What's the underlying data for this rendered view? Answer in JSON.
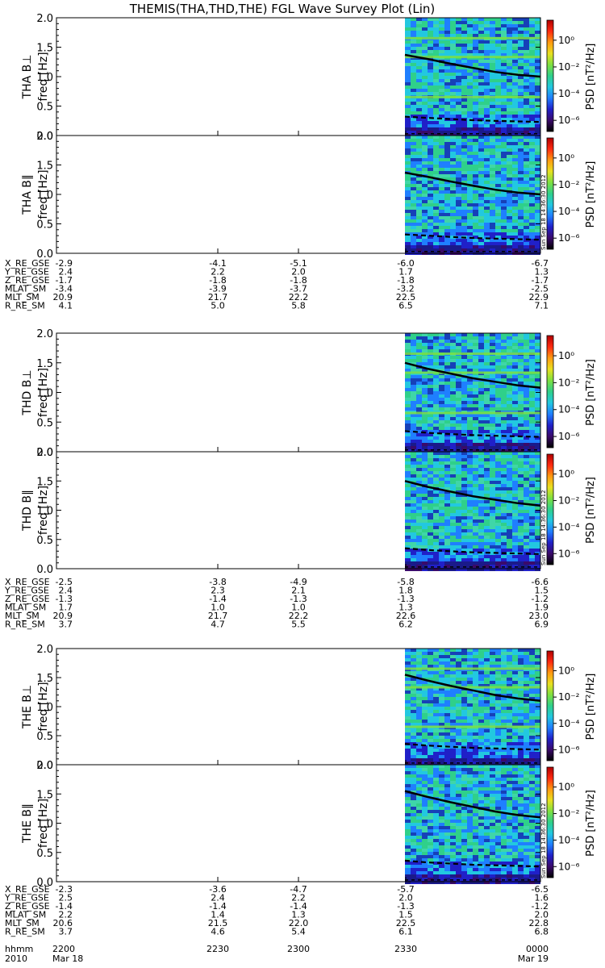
{
  "title": "THEMIS(THA,THD,THE) FGL Wave Survey Plot (Lin)",
  "timestamp": "Sun Sep 18 14:36:30 2012",
  "colorbar": {
    "label": "PSD [nT²/Hz]",
    "tick_labels": [
      "10⁰",
      "10⁻²",
      "10⁻⁴",
      "10⁻⁶"
    ],
    "colors": [
      "#000000",
      "#3a0a6a",
      "#2020c8",
      "#1f7fff",
      "#22c8e0",
      "#2fd08a",
      "#7ee040",
      "#e8e020",
      "#ff9a10",
      "#ff2a10",
      "#b00000"
    ]
  },
  "chart_data": [
    {
      "type": "heatmap",
      "probe": "THA",
      "component": "⊥",
      "ylabel": "THA B⊥",
      "yunit": "freq [Hz]",
      "ylim": [
        0,
        2
      ],
      "y_ticks": [
        "0.0",
        "0.5",
        "1.0",
        "1.5",
        "2.0"
      ],
      "solid_line": [
        1.37,
        1.3,
        1.22,
        1.15,
        1.08,
        1.03,
        1.0
      ],
      "dashed_line": [
        0.32,
        0.3,
        0.28,
        0.26,
        0.25,
        0.24,
        0.23
      ]
    },
    {
      "type": "heatmap",
      "probe": "THA",
      "component": "∥",
      "ylabel": "THA B∥",
      "yunit": "freq [Hz]",
      "ylim": [
        0,
        2
      ],
      "y_ticks": [
        "0.0",
        "0.5",
        "1.0",
        "1.5",
        "2.0"
      ],
      "solid_line": [
        1.37,
        1.3,
        1.22,
        1.15,
        1.08,
        1.03,
        1.0
      ],
      "dashed_line": [
        0.32,
        0.3,
        0.28,
        0.26,
        0.25,
        0.24,
        0.23
      ]
    },
    {
      "type": "heatmap",
      "probe": "THD",
      "component": "⊥",
      "ylabel": "THD B⊥",
      "yunit": "freq [Hz]",
      "ylim": [
        0,
        2
      ],
      "y_ticks": [
        "0.0",
        "0.5",
        "1.0",
        "1.5",
        "2.0"
      ],
      "solid_line": [
        1.5,
        1.4,
        1.32,
        1.24,
        1.18,
        1.12,
        1.08
      ],
      "dashed_line": [
        0.35,
        0.32,
        0.3,
        0.28,
        0.27,
        0.26,
        0.25
      ]
    },
    {
      "type": "heatmap",
      "probe": "THD",
      "component": "∥",
      "ylabel": "THD B∥",
      "yunit": "freq [Hz]",
      "ylim": [
        0,
        2
      ],
      "y_ticks": [
        "0.0",
        "0.5",
        "1.0",
        "1.5",
        "2.0"
      ],
      "solid_line": [
        1.5,
        1.4,
        1.32,
        1.24,
        1.18,
        1.12,
        1.08
      ],
      "dashed_line": [
        0.35,
        0.32,
        0.3,
        0.28,
        0.27,
        0.26,
        0.25
      ]
    },
    {
      "type": "heatmap",
      "probe": "THE",
      "component": "⊥",
      "ylabel": "THE B⊥",
      "yunit": "freq [Hz]",
      "ylim": [
        0,
        2
      ],
      "y_ticks": [
        "0.0",
        "0.5",
        "1.0",
        "1.5",
        "2.0"
      ],
      "solid_line": [
        1.55,
        1.45,
        1.36,
        1.28,
        1.2,
        1.14,
        1.1
      ],
      "dashed_line": [
        0.36,
        0.33,
        0.31,
        0.29,
        0.28,
        0.27,
        0.26
      ]
    },
    {
      "type": "heatmap",
      "probe": "THE",
      "component": "∥",
      "ylabel": "THE B∥",
      "yunit": "freq [Hz]",
      "ylim": [
        0,
        2
      ],
      "y_ticks": [
        "0.0",
        "0.5",
        "1.0",
        "1.5",
        "2.0"
      ],
      "solid_line": [
        1.55,
        1.45,
        1.36,
        1.28,
        1.2,
        1.14,
        1.1
      ],
      "dashed_line": [
        0.36,
        0.33,
        0.31,
        0.29,
        0.28,
        0.27,
        0.26
      ]
    }
  ],
  "ephemeris": [
    {
      "rows": [
        {
          "label": "X_RE_GSE",
          "values": [
            "-2.9",
            "-4.1",
            "-5.1",
            "-6.0",
            "-6.7"
          ]
        },
        {
          "label": "Y_RE_GSE",
          "values": [
            "2.4",
            "2.2",
            "2.0",
            "1.7",
            "1.3"
          ]
        },
        {
          "label": "Z_RE_GSE",
          "values": [
            "-1.7",
            "-1.8",
            "-1.8",
            "-1.8",
            "-1.7"
          ]
        },
        {
          "label": "MLAT_SM",
          "values": [
            "-3.4",
            "-3.9",
            "-3.7",
            "-3.2",
            "-2.5"
          ]
        },
        {
          "label": "MLT_SM",
          "values": [
            "20.9",
            "21.7",
            "22.2",
            "22.5",
            "22.9"
          ]
        },
        {
          "label": "R_RE_SM",
          "values": [
            "4.1",
            "5.0",
            "5.8",
            "6.5",
            "7.1"
          ]
        }
      ]
    },
    {
      "rows": [
        {
          "label": "X_RE_GSE",
          "values": [
            "-2.5",
            "-3.8",
            "-4.9",
            "-5.8",
            "-6.6"
          ]
        },
        {
          "label": "Y_RE_GSE",
          "values": [
            "2.4",
            "2.3",
            "2.1",
            "1.8",
            "1.5"
          ]
        },
        {
          "label": "Z_RE_GSE",
          "values": [
            "-1.3",
            "-1.4",
            "-1.3",
            "-1.3",
            "-1.2"
          ]
        },
        {
          "label": "MLAT_SM",
          "values": [
            "1.7",
            "1.0",
            "1.0",
            "1.3",
            "1.9"
          ]
        },
        {
          "label": "MLT_SM",
          "values": [
            "20.9",
            "21.7",
            "22.2",
            "22.6",
            "23.0"
          ]
        },
        {
          "label": "R_RE_SM",
          "values": [
            "3.7",
            "4.7",
            "5.5",
            "6.2",
            "6.9"
          ]
        }
      ]
    },
    {
      "rows": [
        {
          "label": "X_RE_GSE",
          "values": [
            "-2.3",
            "-3.6",
            "-4.7",
            "-5.7",
            "-6.5"
          ]
        },
        {
          "label": "Y_RE_GSE",
          "values": [
            "2.5",
            "2.4",
            "2.2",
            "2.0",
            "1.6"
          ]
        },
        {
          "label": "Z_RE_GSE",
          "values": [
            "-1.4",
            "-1.4",
            "-1.4",
            "-1.3",
            "-1.2"
          ]
        },
        {
          "label": "MLAT_SM",
          "values": [
            "2.2",
            "1.4",
            "1.3",
            "1.5",
            "2.0"
          ]
        },
        {
          "label": "MLT_SM",
          "values": [
            "20.6",
            "21.5",
            "22.0",
            "22.5",
            "22.8"
          ]
        },
        {
          "label": "R_RE_SM",
          "values": [
            "3.7",
            "4.6",
            "5.4",
            "6.1",
            "6.8"
          ]
        }
      ]
    }
  ],
  "time_axis": {
    "label": "hhmm",
    "ticks": [
      "2200",
      "2230",
      "2300",
      "2330",
      "0000"
    ],
    "year": "2010",
    "date_start": "Mar 18",
    "date_end": "Mar 19"
  }
}
